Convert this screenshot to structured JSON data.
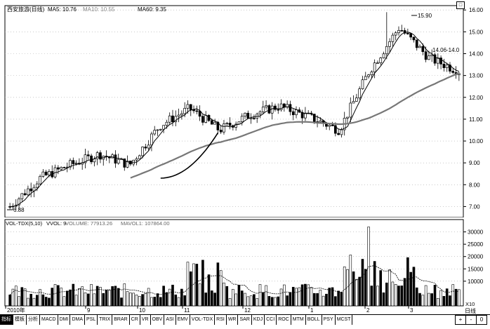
{
  "price_panel": {
    "title": "西安旅游(日线)",
    "ma5": "MA5: 10.76",
    "ma10": "MA10: 10.55",
    "ma60": "MA60: 9.35",
    "max_label": "15.90",
    "min_label": "6.88",
    "annotation": "14.06-14.0",
    "y_ticks": [
      "16.00",
      "15.00",
      "14.00",
      "13.00",
      "12.00",
      "11.00",
      "10.00",
      "9.00",
      "8.00",
      "7.00"
    ]
  },
  "volume_panel": {
    "title": "VOL-TDX(5,10)",
    "vvol": "VVOL: 9.",
    "volume": "VOLUME: 77913.26",
    "mavol1": "MAVOL1: 107864.00",
    "y_ticks": [
      "30000",
      "25000",
      "20000",
      "15000",
      "10000"
    ],
    "x10": "X10"
  },
  "time_axis": {
    "labels": [
      "2010年",
      "9",
      "10",
      "11",
      "12",
      "1",
      "2",
      "3"
    ],
    "period": "日线"
  },
  "indicator_tabs": [
    "指标",
    "模板",
    "分析",
    "MACD",
    "DMI",
    "DMA",
    "PSL",
    "TRIX",
    "BRAR",
    "CR",
    "VR",
    "OBV",
    "ASI",
    "EMV",
    "VOL-TDX",
    "RSI",
    "WR",
    "SAR",
    "KDJ",
    "CCI",
    "ROC",
    "MTM",
    "BOLL",
    "PSY",
    "MCST"
  ],
  "scroller": {
    "plus": "+",
    "minus": "-",
    "zero": "0"
  },
  "colors": {
    "candle": "#000000",
    "ma_short": "#000000",
    "ma_long": "#666666",
    "grid": "#999999"
  },
  "chart_data": {
    "type": "candlestick",
    "title": "西安旅游(日线)",
    "x_labels": [
      "2010年",
      "9",
      "10",
      "11",
      "12",
      "1",
      "2",
      "3"
    ],
    "ylim": [
      6.5,
      16.2
    ],
    "close_by_period": [
      7.0,
      8.3,
      8.9,
      9.4,
      8.9,
      10.7,
      11.5,
      10.5,
      11.2,
      11.6,
      11.1,
      10.5,
      13.2,
      15.2,
      13.8,
      13.2
    ],
    "ma60_end": 9.35,
    "high": 15.9,
    "low": 6.88,
    "volume_ylim": [
      0,
      35000
    ]
  }
}
